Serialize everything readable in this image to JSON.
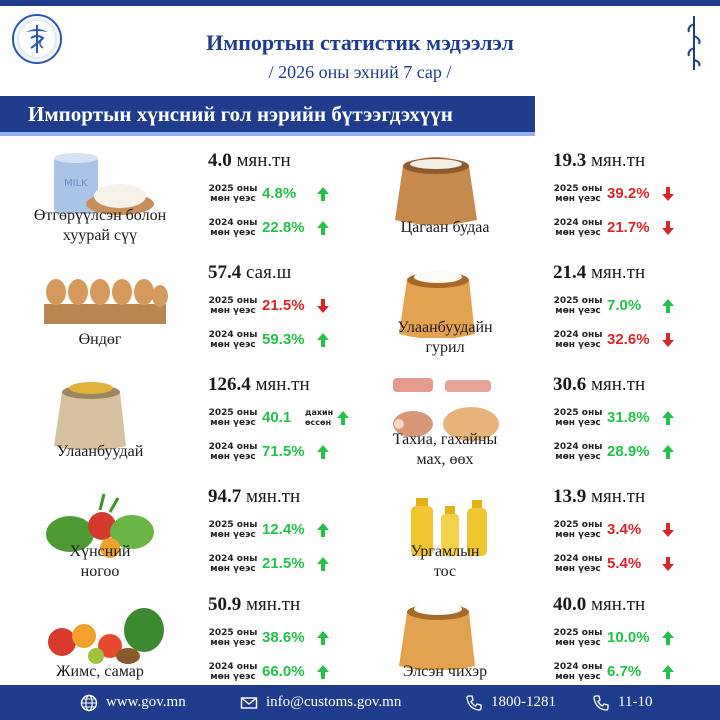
{
  "header": {
    "title": "Импортын статистик мэдээлэл",
    "subtitle": "/ 2026 оны эхний 7 сар /",
    "section_title": "Импортын хүнсний гол нэрийн бүтээгдэхүүн"
  },
  "colors": {
    "primary": "#1f3d8c",
    "up": "#23c04a",
    "down": "#d8252c"
  },
  "items": [
    {
      "name_line1": "Өтгөрүүлсэн болон",
      "name_line2": "хуурай сүү",
      "value": "4.0",
      "unit": "мян.тн",
      "icon": "milk-powder-icon",
      "rows": [
        {
          "label_line1": "2025 оны",
          "label_line2": "мөн үеэс",
          "pct": "4.8%",
          "direction": "up",
          "note_line1": "",
          "note_line2": ""
        },
        {
          "label_line1": "2024 оны",
          "label_line2": "мөн үеэс",
          "pct": "22.8%",
          "direction": "up",
          "note_line1": "",
          "note_line2": ""
        }
      ]
    },
    {
      "name_line1": "Цагаан будаа",
      "name_line2": "",
      "value": "19.3",
      "unit": "мян.тн",
      "icon": "rice-sack-icon",
      "rows": [
        {
          "label_line1": "2025 оны",
          "label_line2": "мөн үеэс",
          "pct": "39.2%",
          "direction": "down",
          "note_line1": "",
          "note_line2": ""
        },
        {
          "label_line1": "2024 оны",
          "label_line2": "мөн үеэс",
          "pct": "21.7%",
          "direction": "down",
          "note_line1": "",
          "note_line2": ""
        }
      ]
    },
    {
      "name_line1": "Өндөг",
      "name_line2": "",
      "value": "57.4",
      "unit": "сая.ш",
      "icon": "egg-tray-icon",
      "rows": [
        {
          "label_line1": "2025 оны",
          "label_line2": "мөн үеэс",
          "pct": "21.5%",
          "direction": "down",
          "note_line1": "",
          "note_line2": ""
        },
        {
          "label_line1": "2024 оны",
          "label_line2": "мөн үеэс",
          "pct": "59.3%",
          "direction": "up",
          "note_line1": "",
          "note_line2": ""
        }
      ]
    },
    {
      "name_line1": "Улаанбуудайн",
      "name_line2": "гурил",
      "value": "21.4",
      "unit": "мян.тн",
      "icon": "flour-sack-icon",
      "rows": [
        {
          "label_line1": "2025 оны",
          "label_line2": "мөн үеэс",
          "pct": "7.0%",
          "direction": "up",
          "note_line1": "",
          "note_line2": ""
        },
        {
          "label_line1": "2024 оны",
          "label_line2": "мөн үеэс",
          "pct": "32.6%",
          "direction": "down",
          "note_line1": "",
          "note_line2": ""
        }
      ]
    },
    {
      "name_line1": "Улаанбуудай",
      "name_line2": "",
      "value": "126.4",
      "unit": "мян.тн",
      "icon": "wheat-sack-icon",
      "rows": [
        {
          "label_line1": "2025 оны",
          "label_line2": "мөн үеэс",
          "pct": "40.1",
          "direction": "up",
          "note_line1": "дахин",
          "note_line2": "өссөн"
        },
        {
          "label_line1": "2024 оны",
          "label_line2": "мөн үеэс",
          "pct": "71.5%",
          "direction": "up",
          "note_line1": "",
          "note_line2": ""
        }
      ]
    },
    {
      "name_line1": "Тахиа, гахайны",
      "name_line2": "мах, өөх",
      "value": "30.6",
      "unit": "мян.тн",
      "icon": "meat-icon",
      "rows": [
        {
          "label_line1": "2025 оны",
          "label_line2": "мөн үеэс",
          "pct": "31.8%",
          "direction": "up",
          "note_line1": "",
          "note_line2": ""
        },
        {
          "label_line1": "2024 оны",
          "label_line2": "мөн үеэс",
          "pct": "28.9%",
          "direction": "up",
          "note_line1": "",
          "note_line2": ""
        }
      ]
    },
    {
      "name_line1": "Хүнсний",
      "name_line2": "ногоо",
      "value": "94.7",
      "unit": "мян.тн",
      "icon": "vegetables-icon",
      "rows": [
        {
          "label_line1": "2025 оны",
          "label_line2": "мөн үеэс",
          "pct": "12.4%",
          "direction": "up",
          "note_line1": "",
          "note_line2": ""
        },
        {
          "label_line1": "2024 оны",
          "label_line2": "мөн үеэс",
          "pct": "21.5%",
          "direction": "up",
          "note_line1": "",
          "note_line2": ""
        }
      ]
    },
    {
      "name_line1": "Ургамлын",
      "name_line2": "тос",
      "value": "13.9",
      "unit": "мян.тн",
      "icon": "oil-bottles-icon",
      "rows": [
        {
          "label_line1": "2025 оны",
          "label_line2": "мөн үеэс",
          "pct": "3.4%",
          "direction": "down",
          "note_line1": "",
          "note_line2": ""
        },
        {
          "label_line1": "2024 оны",
          "label_line2": "мөн үеэс",
          "pct": "5.4%",
          "direction": "down",
          "note_line1": "",
          "note_line2": ""
        }
      ]
    },
    {
      "name_line1": "Жимс, самар",
      "name_line2": "",
      "value": "50.9",
      "unit": "мян.тн",
      "icon": "fruits-icon",
      "rows": [
        {
          "label_line1": "2025 оны",
          "label_line2": "мөн үеэс",
          "pct": "38.6%",
          "direction": "up",
          "note_line1": "",
          "note_line2": ""
        },
        {
          "label_line1": "2024 оны",
          "label_line2": "мөн үеэс",
          "pct": "66.0%",
          "direction": "up",
          "note_line1": "",
          "note_line2": ""
        }
      ]
    },
    {
      "name_line1": "Элсэн чихэр",
      "name_line2": "",
      "value": "40.0",
      "unit": "мян.тн",
      "icon": "sugar-sack-icon",
      "rows": [
        {
          "label_line1": "2025 оны",
          "label_line2": "мөн үеэс",
          "pct": "10.0%",
          "direction": "up",
          "note_line1": "",
          "note_line2": ""
        },
        {
          "label_line1": "2024 оны",
          "label_line2": "мөн үеэс",
          "pct": "6.7%",
          "direction": "up",
          "note_line1": "",
          "note_line2": ""
        }
      ]
    }
  ],
  "footer": {
    "website": "www.gov.mn",
    "email": "info@customs.gov.mn",
    "phone1": "1800-1281",
    "phone2": "11-10"
  }
}
